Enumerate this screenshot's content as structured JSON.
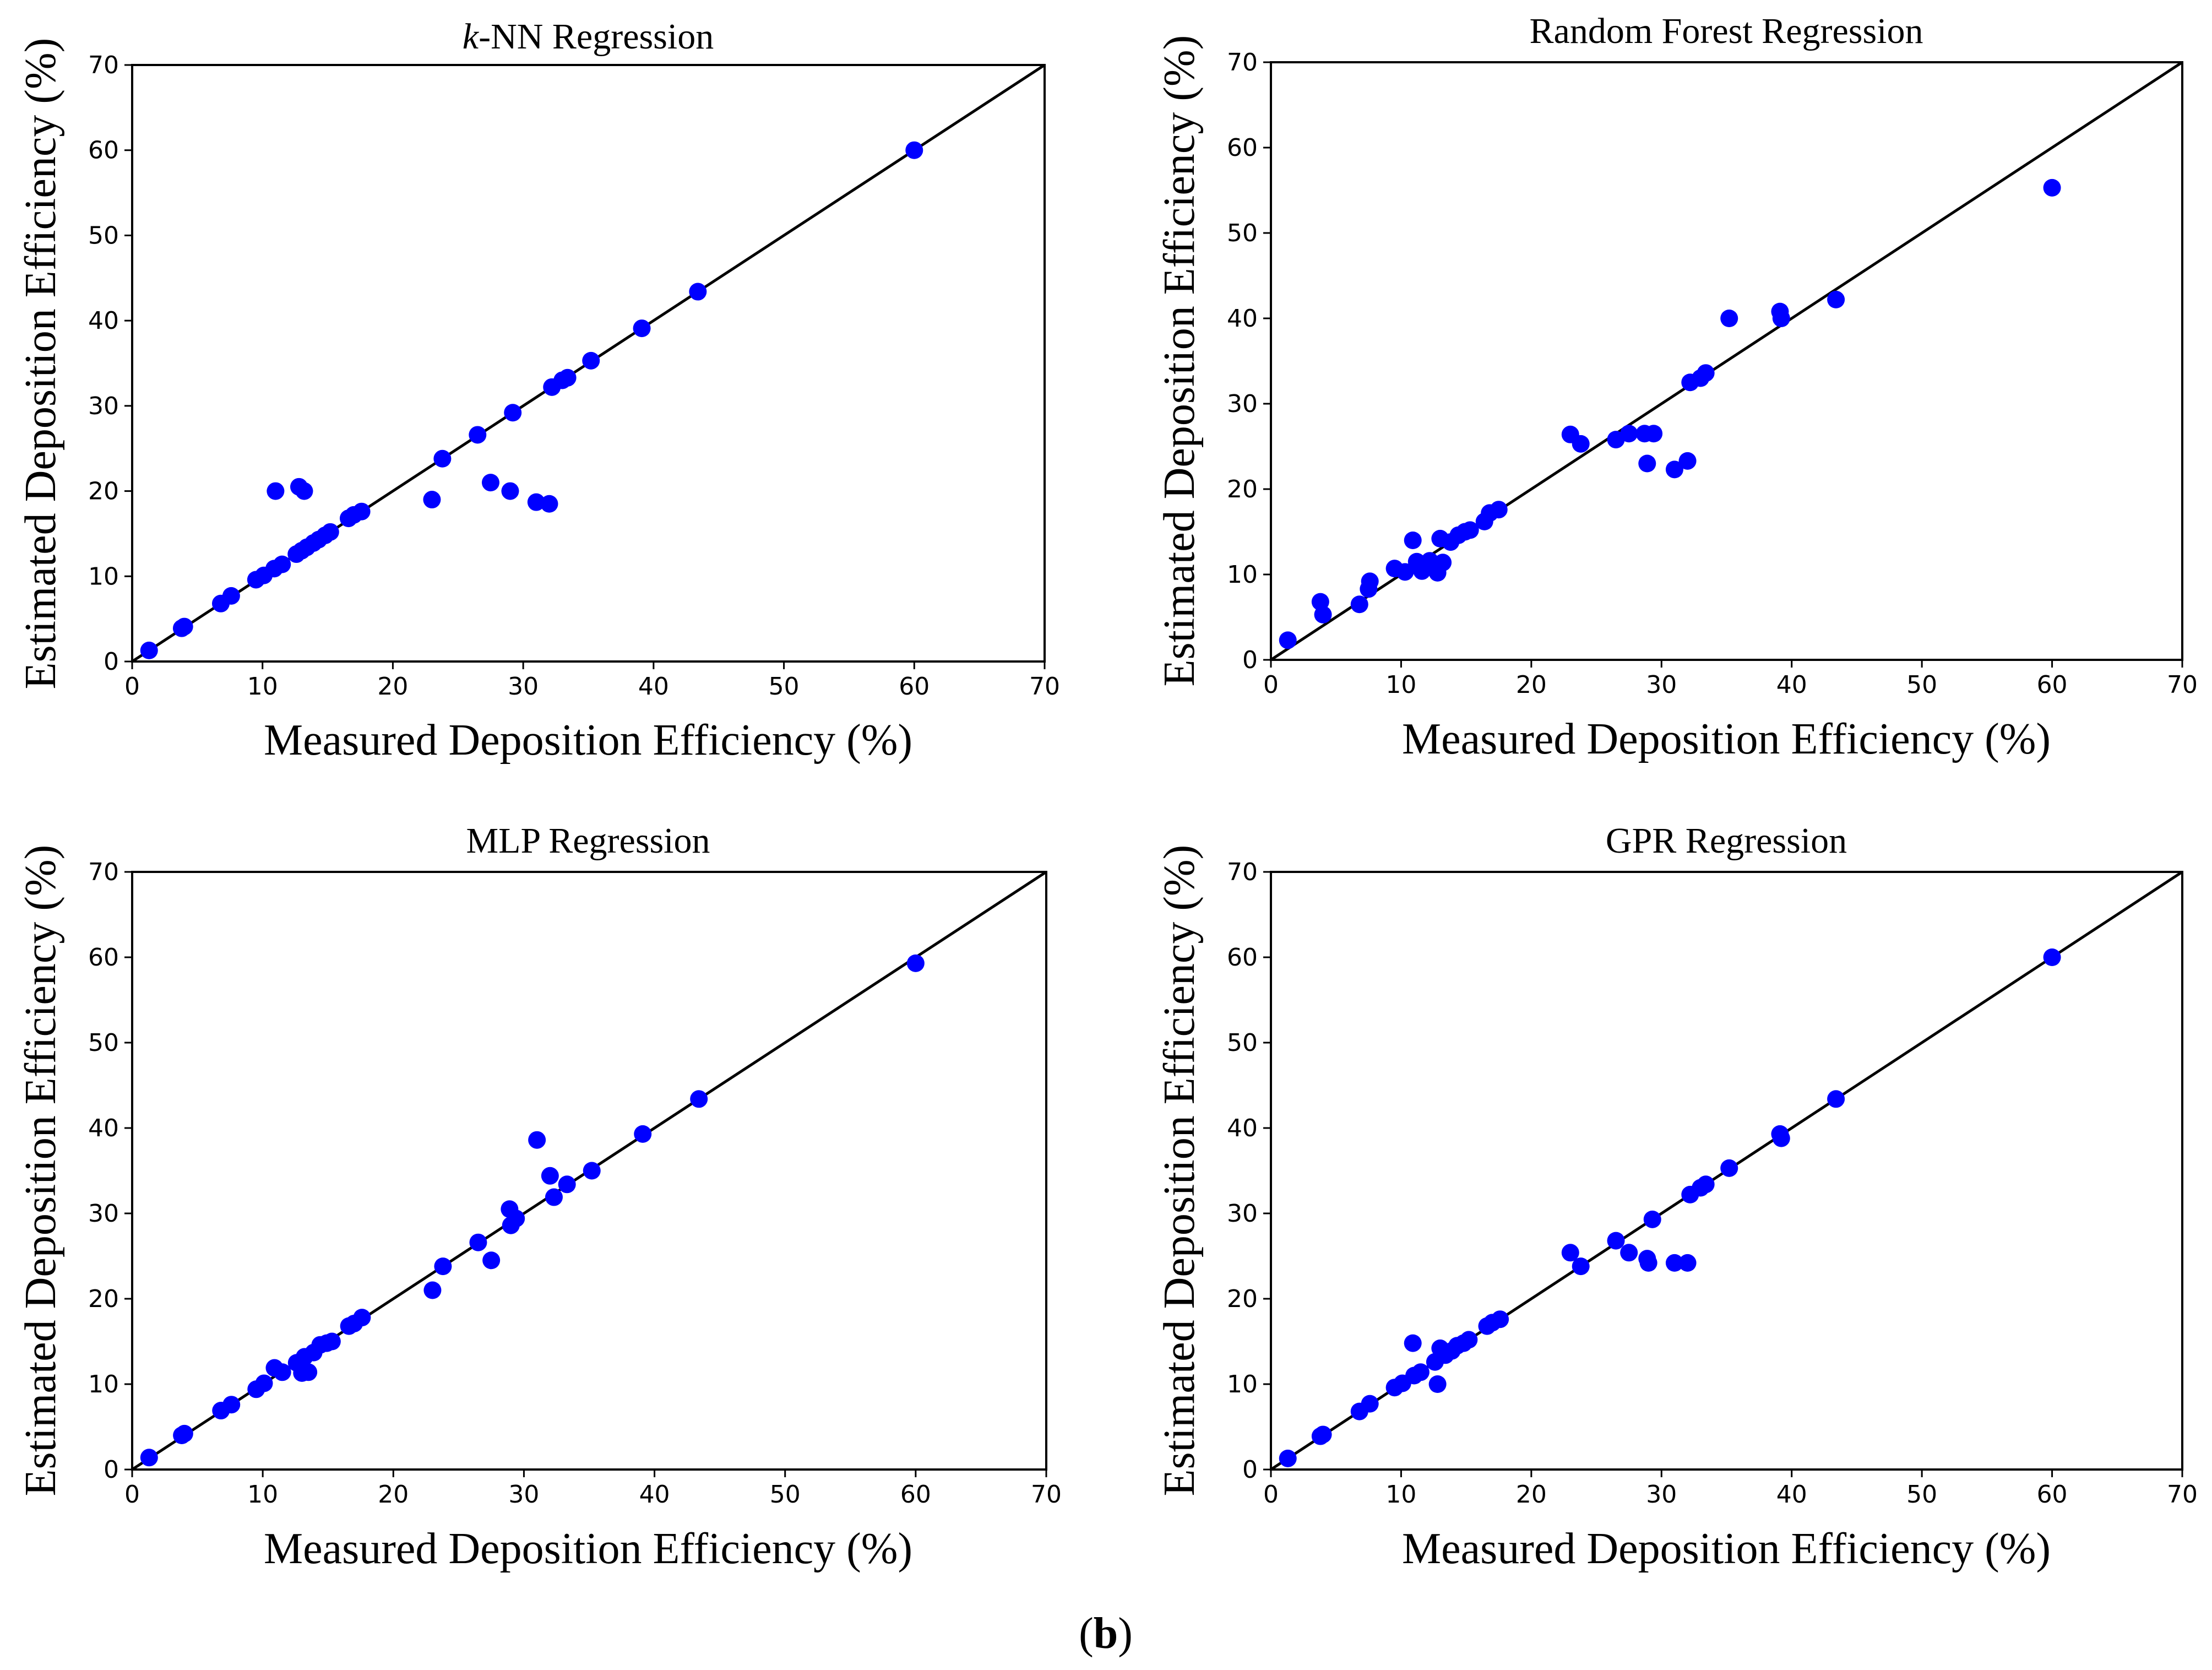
{
  "figure_caption": {
    "open": "(",
    "letter": "b",
    "close": ")"
  },
  "point_color": "#0000ff",
  "chart_data": [
    {
      "type": "scatter",
      "title": "k-NN Regression",
      "title_parts": {
        "italic": "k",
        "rest": "-NN Regression"
      },
      "xlabel": "Measured Deposition Efficiency (%)",
      "ylabel": "Estimated Deposition Efficiency (%)",
      "xlim": [
        0,
        70
      ],
      "ylim": [
        0,
        70
      ],
      "xticks": [
        0,
        10,
        20,
        30,
        40,
        50,
        60,
        70
      ],
      "yticks": [
        0,
        10,
        20,
        30,
        40,
        50,
        60,
        70
      ],
      "reference_line": [
        [
          0,
          0
        ],
        [
          70,
          70
        ]
      ],
      "points": [
        [
          1.3,
          1.3
        ],
        [
          3.8,
          3.9
        ],
        [
          4.0,
          4.1
        ],
        [
          6.8,
          6.8
        ],
        [
          7.6,
          7.7
        ],
        [
          9.5,
          9.6
        ],
        [
          10.1,
          10.1
        ],
        [
          10.9,
          10.9
        ],
        [
          11.5,
          11.4
        ],
        [
          12.6,
          12.6
        ],
        [
          13.0,
          13.0
        ],
        [
          13.4,
          13.4
        ],
        [
          13.9,
          13.9
        ],
        [
          14.3,
          14.3
        ],
        [
          14.8,
          14.8
        ],
        [
          15.2,
          15.2
        ],
        [
          16.6,
          16.8
        ],
        [
          17.0,
          17.2
        ],
        [
          17.6,
          17.6
        ],
        [
          11.0,
          20.0
        ],
        [
          12.8,
          20.5
        ],
        [
          13.2,
          20.0
        ],
        [
          23.0,
          19.0
        ],
        [
          23.8,
          23.8
        ],
        [
          26.5,
          26.6
        ],
        [
          27.5,
          21.0
        ],
        [
          29.0,
          20.0
        ],
        [
          29.2,
          29.2
        ],
        [
          31.0,
          18.7
        ],
        [
          32.0,
          18.5
        ],
        [
          32.2,
          32.2
        ],
        [
          33.0,
          33.0
        ],
        [
          33.4,
          33.3
        ],
        [
          35.2,
          35.3
        ],
        [
          39.1,
          39.1
        ],
        [
          43.4,
          43.4
        ],
        [
          60.0,
          60.0
        ]
      ]
    },
    {
      "type": "scatter",
      "title": "Random Forest Regression",
      "xlabel": "Measured Deposition Efficiency (%)",
      "ylabel": "Estimated Deposition Efficiency (%)",
      "xlim": [
        0,
        70
      ],
      "ylim": [
        0,
        70
      ],
      "xticks": [
        0,
        10,
        20,
        30,
        40,
        50,
        60,
        70
      ],
      "yticks": [
        0,
        10,
        20,
        30,
        40,
        50,
        60,
        70
      ],
      "reference_line": [
        [
          0,
          0
        ],
        [
          70,
          70
        ]
      ],
      "points": [
        [
          1.3,
          2.3
        ],
        [
          3.8,
          6.8
        ],
        [
          4.0,
          5.3
        ],
        [
          6.8,
          6.5
        ],
        [
          7.5,
          8.3
        ],
        [
          7.6,
          9.2
        ],
        [
          9.5,
          10.7
        ],
        [
          10.3,
          10.3
        ],
        [
          10.9,
          14.0
        ],
        [
          11.2,
          11.5
        ],
        [
          11.6,
          10.4
        ],
        [
          12.2,
          11.6
        ],
        [
          12.8,
          10.2
        ],
        [
          13.0,
          14.2
        ],
        [
          13.2,
          11.4
        ],
        [
          13.8,
          13.8
        ],
        [
          14.4,
          14.6
        ],
        [
          14.9,
          15.0
        ],
        [
          15.3,
          15.2
        ],
        [
          16.4,
          16.2
        ],
        [
          16.8,
          17.2
        ],
        [
          17.5,
          17.6
        ],
        [
          23.0,
          26.4
        ],
        [
          23.8,
          25.3
        ],
        [
          26.5,
          25.8
        ],
        [
          27.5,
          26.5
        ],
        [
          28.7,
          26.5
        ],
        [
          28.9,
          23.0
        ],
        [
          29.4,
          26.5
        ],
        [
          31.0,
          22.3
        ],
        [
          32.0,
          23.3
        ],
        [
          32.2,
          32.5
        ],
        [
          33.0,
          33.0
        ],
        [
          33.4,
          33.6
        ],
        [
          35.2,
          40.0
        ],
        [
          39.1,
          40.8
        ],
        [
          39.2,
          40.0
        ],
        [
          43.4,
          42.2
        ],
        [
          60.0,
          55.3
        ]
      ]
    },
    {
      "type": "scatter",
      "title": "MLP Regression",
      "xlabel": "Measured Deposition Efficiency (%)",
      "ylabel": "Estimated Deposition Efficiency (%)",
      "xlim": [
        0,
        70
      ],
      "ylim": [
        0,
        70
      ],
      "xticks": [
        0,
        10,
        20,
        30,
        40,
        50,
        60,
        70
      ],
      "yticks": [
        0,
        10,
        20,
        30,
        40,
        50,
        60,
        70
      ],
      "reference_line": [
        [
          0,
          0
        ],
        [
          70,
          70
        ]
      ],
      "points": [
        [
          1.3,
          1.4
        ],
        [
          3.8,
          4.0
        ],
        [
          4.0,
          4.2
        ],
        [
          6.8,
          6.9
        ],
        [
          7.6,
          7.6
        ],
        [
          9.5,
          9.4
        ],
        [
          10.1,
          10.1
        ],
        [
          10.9,
          11.9
        ],
        [
          11.5,
          11.4
        ],
        [
          12.6,
          12.5
        ],
        [
          13.0,
          11.3
        ],
        [
          13.2,
          13.2
        ],
        [
          13.5,
          11.4
        ],
        [
          13.9,
          13.7
        ],
        [
          14.4,
          14.6
        ],
        [
          14.9,
          14.8
        ],
        [
          15.3,
          15.0
        ],
        [
          16.6,
          16.8
        ],
        [
          17.0,
          17.1
        ],
        [
          17.6,
          17.8
        ],
        [
          23.0,
          21.0
        ],
        [
          23.8,
          23.8
        ],
        [
          26.5,
          26.6
        ],
        [
          27.5,
          24.5
        ],
        [
          28.9,
          30.5
        ],
        [
          29.0,
          28.6
        ],
        [
          29.4,
          29.4
        ],
        [
          31.0,
          38.6
        ],
        [
          32.0,
          34.4
        ],
        [
          32.3,
          31.9
        ],
        [
          33.3,
          33.4
        ],
        [
          35.2,
          35.0
        ],
        [
          39.1,
          39.3
        ],
        [
          43.4,
          43.4
        ],
        [
          60.0,
          59.3
        ]
      ]
    },
    {
      "type": "scatter",
      "title": "GPR Regression",
      "xlabel": "Measured Deposition Efficiency (%)",
      "ylabel": "Estimated Deposition Efficiency (%)",
      "xlim": [
        0,
        70
      ],
      "ylim": [
        0,
        70
      ],
      "xticks": [
        0,
        10,
        20,
        30,
        40,
        50,
        60,
        70
      ],
      "yticks": [
        0,
        10,
        20,
        30,
        40,
        50,
        60,
        70
      ],
      "reference_line": [
        [
          0,
          0
        ],
        [
          70,
          70
        ]
      ],
      "points": [
        [
          1.3,
          1.3
        ],
        [
          3.8,
          3.9
        ],
        [
          4.0,
          4.1
        ],
        [
          6.8,
          6.8
        ],
        [
          7.6,
          7.7
        ],
        [
          9.5,
          9.6
        ],
        [
          10.1,
          10.1
        ],
        [
          10.9,
          14.8
        ],
        [
          11.0,
          11.0
        ],
        [
          11.5,
          11.4
        ],
        [
          12.6,
          12.6
        ],
        [
          12.8,
          10.0
        ],
        [
          13.0,
          14.2
        ],
        [
          13.4,
          13.4
        ],
        [
          13.9,
          13.9
        ],
        [
          14.3,
          14.5
        ],
        [
          14.8,
          14.8
        ],
        [
          15.2,
          15.2
        ],
        [
          16.6,
          16.8
        ],
        [
          17.0,
          17.2
        ],
        [
          17.6,
          17.6
        ],
        [
          23.0,
          25.4
        ],
        [
          23.8,
          23.8
        ],
        [
          26.5,
          26.8
        ],
        [
          27.5,
          25.4
        ],
        [
          28.9,
          24.7
        ],
        [
          29.0,
          24.2
        ],
        [
          29.3,
          29.3
        ],
        [
          31.0,
          24.2
        ],
        [
          32.0,
          24.2
        ],
        [
          32.2,
          32.2
        ],
        [
          33.0,
          33.0
        ],
        [
          33.4,
          33.4
        ],
        [
          35.2,
          35.3
        ],
        [
          39.1,
          39.3
        ],
        [
          39.2,
          38.8
        ],
        [
          43.4,
          43.4
        ],
        [
          60.0,
          60.0
        ]
      ]
    }
  ]
}
